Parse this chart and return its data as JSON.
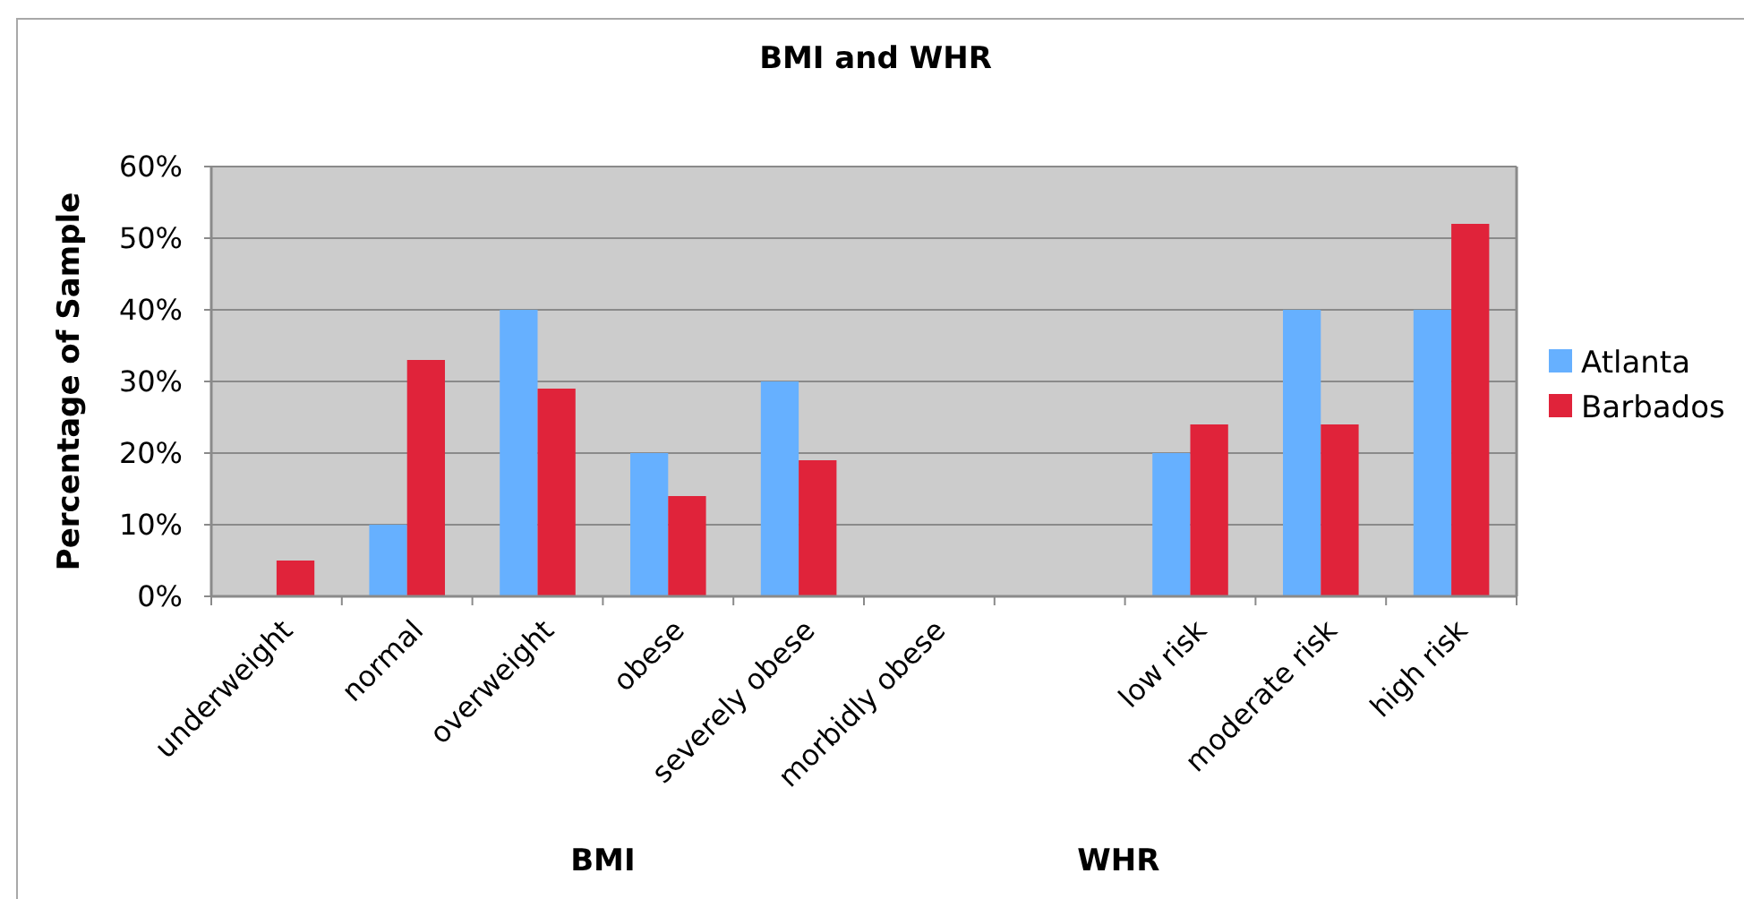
{
  "chart_data": {
    "type": "bar",
    "title": "BMI and WHR",
    "ylabel": "Percentage of Sample",
    "categories": [
      "underweight",
      "normal",
      "overweight",
      "obese",
      "severely obese",
      "morbidly obese",
      null,
      "low risk",
      "moderate risk",
      "high risk"
    ],
    "series": [
      {
        "name": "Atlanta",
        "color": "#66b0ff",
        "values": [
          0,
          10,
          40,
          20,
          30,
          0,
          null,
          20,
          40,
          40
        ]
      },
      {
        "name": "Barbados",
        "color": "#e0233a",
        "values": [
          5,
          33,
          29,
          14,
          19,
          0,
          null,
          24,
          24,
          52
        ]
      }
    ],
    "ylim": [
      0,
      60
    ],
    "yticks": [
      {
        "value": 0,
        "label": "0%"
      },
      {
        "value": 10,
        "label": "10%"
      },
      {
        "value": 20,
        "label": "20%"
      },
      {
        "value": 30,
        "label": "30%"
      },
      {
        "value": 40,
        "label": "40%"
      },
      {
        "value": 50,
        "label": "50%"
      },
      {
        "value": 60,
        "label": "60%"
      }
    ],
    "grid": "y",
    "legend": "right",
    "annotations": [
      "BMI",
      "WHR"
    ]
  }
}
